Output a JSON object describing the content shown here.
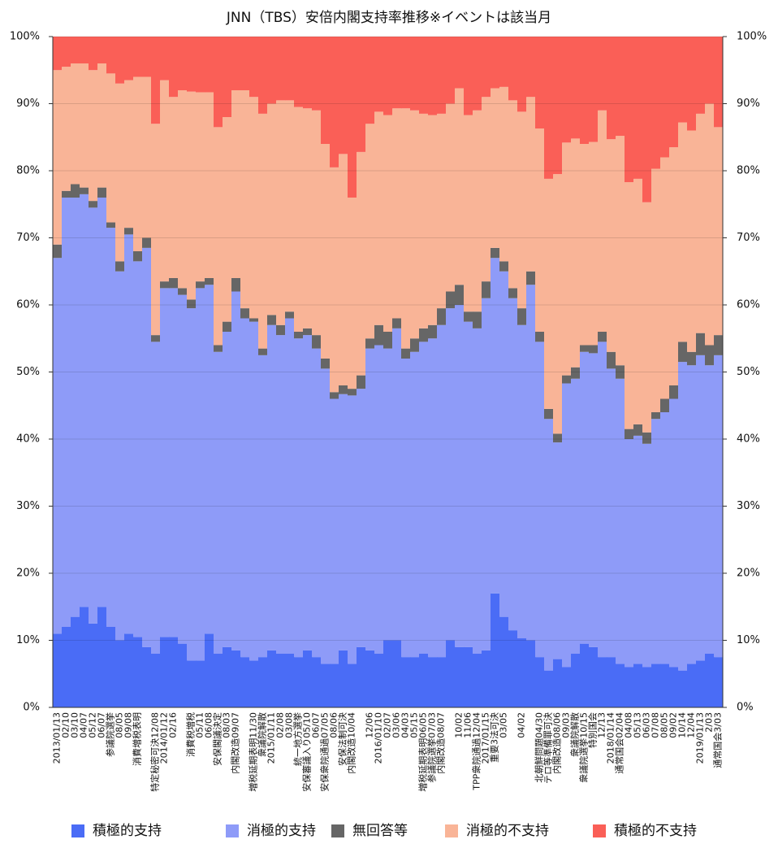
{
  "chart_data": {
    "type": "stacked-bar-100",
    "title": "JNN（TBS）安倍内閣支持率推移※イベントは該当月",
    "categories": [
      "2013/01/13",
      "02/10",
      "03/10",
      "04/07",
      "05/12",
      "06/07",
      "参議院選挙",
      "08/05",
      "09/08",
      "消費増税表明",
      null,
      "特定秘密可決12/08",
      "2014/01/12",
      "02/16",
      null,
      "消費税増税",
      "05/11",
      "06/08",
      "安保閣議決定",
      "08/03",
      "内閣改造09/07",
      null,
      "増税延期表明11/30",
      "衆議院解散",
      "2015/01/11",
      "02/08",
      "03/08",
      "統一地方選挙",
      "安保審議入り05/10",
      "06/07",
      "安保衆院通過07/05",
      "08/06",
      "安保法制可決",
      "内閣改造10/04",
      null,
      "12/06",
      "2016/01/10",
      "02/07",
      "03/06",
      "04/03",
      "05/15",
      "増税延期表明06/05",
      "参議院選挙07/03",
      "内閣改造08/07",
      null,
      "10/02",
      "11/06",
      "TPP衆院通過12/04",
      "2017/01/15",
      "重要3法可決",
      "03/05",
      null,
      "04/02",
      null,
      "北朝鮮問題04/30",
      "テロ等準備罪可決",
      "内閣改造08/06",
      "09/03",
      "衆議院解散",
      "衆議院選挙10/15",
      "特別国会",
      "12/13",
      "2018/01/14",
      "通常国会02/04",
      "04/08",
      "05/13",
      "06/03",
      "07/08",
      "08/05",
      "09/02",
      "10/14",
      "12/04",
      "2019/01/13",
      "2/03",
      "通常国会3/03"
    ],
    "series": [
      {
        "name": "積極的支持",
        "color": "#4a6cf6",
        "values": [
          11,
          12,
          13.5,
          15,
          12.5,
          15,
          12,
          10,
          11,
          10.5,
          9,
          8,
          10.5,
          10.5,
          9.5,
          7,
          7,
          11,
          8,
          9,
          8.5,
          7.5,
          7,
          7.5,
          8.5,
          8,
          8,
          7.5,
          8.5,
          7.5,
          6.5,
          6.5,
          8.5,
          6.5,
          9,
          8.5,
          8,
          10,
          10,
          7.5,
          7.5,
          8,
          7.5,
          7.5,
          10,
          9,
          9,
          8,
          8.5,
          17,
          13.5,
          11.5,
          10.3,
          10,
          7.5,
          5.5,
          7.2,
          6,
          8,
          9.5,
          9,
          7.5,
          7.5,
          6.5,
          6,
          6.5,
          6,
          6.5,
          6.5,
          6,
          5.5,
          6.5,
          7,
          8,
          7.5
        ]
      },
      {
        "name": "消極的支持",
        "color": "#8e9bf8",
        "values": [
          56,
          64,
          62.5,
          61.5,
          62,
          61,
          59.5,
          55,
          59.5,
          56,
          59.5,
          46.5,
          52,
          52,
          52,
          52.5,
          55.5,
          52,
          45,
          47,
          53.5,
          50.5,
          50.5,
          45,
          48.5,
          47.5,
          50,
          47.5,
          47,
          46,
          44,
          39.5,
          38.2,
          40,
          38.5,
          45,
          46,
          43.5,
          46.5,
          44.5,
          45.5,
          46.5,
          47.5,
          49.5,
          49.5,
          51,
          48.5,
          48.5,
          52.5,
          50,
          51.5,
          49.5,
          46.7,
          53,
          47,
          37.5,
          32.3,
          42.3,
          41,
          43.5,
          43.8,
          47,
          43,
          42.5,
          34,
          34,
          33.3,
          36.5,
          37.5,
          40,
          46,
          44.5,
          45.5,
          43,
          45
        ]
      },
      {
        "name": "無回答等",
        "color": "#666666",
        "values": [
          2,
          1,
          2,
          1,
          1,
          1.5,
          0.8,
          1.5,
          1,
          1.5,
          1.5,
          1,
          1,
          1.5,
          1,
          1.3,
          1,
          1,
          1,
          1.5,
          2,
          1.5,
          0.5,
          1,
          1.5,
          1.5,
          1,
          1,
          1,
          2,
          1.5,
          1,
          1.3,
          1,
          2,
          1.5,
          3,
          2.5,
          1.5,
          1.5,
          2,
          2,
          2,
          2.5,
          2.5,
          3,
          1.5,
          2.5,
          2.5,
          1.5,
          1.5,
          1.5,
          2.5,
          2,
          1.5,
          1.5,
          1.3,
          1.2,
          1.7,
          1,
          1.2,
          1.5,
          2.5,
          2,
          1.5,
          1.7,
          1.7,
          1,
          2,
          2,
          3,
          2,
          3.3,
          3,
          3
        ]
      },
      {
        "name": "消極的不支持",
        "color": "#f9b497",
        "values": [
          26,
          18.5,
          18,
          18.5,
          19.5,
          18.5,
          22.2,
          26.5,
          22,
          26,
          24,
          31.5,
          30,
          27,
          29.5,
          31,
          28.2,
          27.7,
          32.5,
          30.5,
          28,
          32.5,
          33,
          35,
          31.5,
          33.5,
          31.5,
          33.5,
          32.8,
          33.5,
          32,
          33.5,
          34.5,
          28.5,
          33.3,
          32,
          31.8,
          32.3,
          31.3,
          35.8,
          34,
          32,
          31.3,
          29,
          28,
          29.3,
          29.3,
          30,
          27.5,
          23.8,
          26,
          28,
          29.3,
          26,
          30.3,
          34.3,
          38.7,
          34.7,
          34.1,
          30,
          30.3,
          33,
          31.7,
          34.2,
          36.8,
          36.6,
          34.3,
          36.3,
          36,
          35.5,
          32.7,
          33,
          32.7,
          36,
          31
        ]
      },
      {
        "name": "積極的不支持",
        "color": "#fa5f57",
        "values": [
          5,
          4.5,
          4,
          4,
          5,
          4,
          5.5,
          7,
          6.5,
          6,
          6,
          13,
          6.5,
          9,
          8,
          8.2,
          8.3,
          8.3,
          13.5,
          12,
          8,
          8,
          9,
          11.5,
          10,
          9.5,
          9.5,
          10.5,
          10.7,
          11,
          16,
          19.5,
          17.5,
          24,
          17.2,
          13,
          11.2,
          11.7,
          10.7,
          10.7,
          11,
          11.5,
          11.7,
          11.5,
          10,
          7.7,
          11.7,
          11,
          9,
          7.7,
          7.5,
          9.5,
          11.2,
          9,
          13.7,
          21.2,
          20.5,
          15.8,
          15.2,
          16,
          15.7,
          11,
          15.3,
          14.8,
          21.7,
          21.2,
          24.7,
          19.7,
          18,
          16.5,
          12.8,
          14,
          11.5,
          10,
          13.5
        ]
      }
    ],
    "ylim": [
      0,
      100
    ],
    "yticks": [
      {
        "value": 0,
        "label": "0%"
      },
      {
        "value": 10,
        "label": "10%"
      },
      {
        "value": 20,
        "label": "20%"
      },
      {
        "value": 30,
        "label": "30%"
      },
      {
        "value": 40,
        "label": "40%"
      },
      {
        "value": 50,
        "label": "50%"
      },
      {
        "value": 60,
        "label": "60%"
      },
      {
        "value": 70,
        "label": "70%"
      },
      {
        "value": 80,
        "label": "80%"
      },
      {
        "value": 90,
        "label": "90%"
      },
      {
        "value": 100,
        "label": "100%"
      }
    ],
    "grid": true,
    "legend": "bottom"
  }
}
